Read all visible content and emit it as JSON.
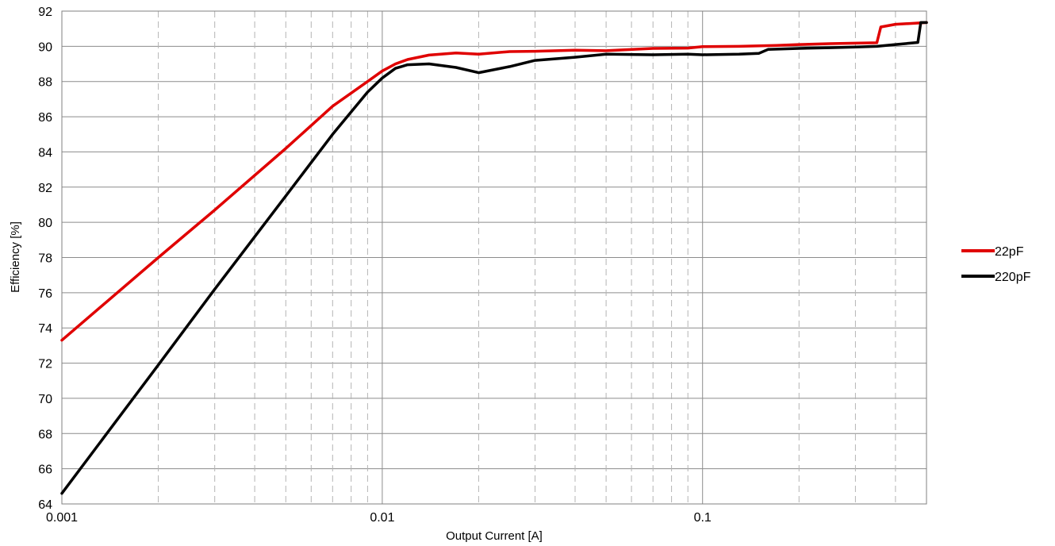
{
  "chart_data": {
    "type": "line",
    "title": "",
    "xlabel": "Output Current [A]",
    "ylabel": "Efficiency [%]",
    "x_scale": "log",
    "xlim": [
      0.001,
      0.5
    ],
    "ylim": [
      64,
      92
    ],
    "y_ticks": [
      64,
      66,
      68,
      70,
      72,
      74,
      76,
      78,
      80,
      82,
      84,
      86,
      88,
      90,
      92
    ],
    "x_tick_labels": [
      {
        "value": 0.001,
        "label": "0.001"
      },
      {
        "value": 0.01,
        "label": "0.01"
      },
      {
        "value": 0.1,
        "label": "0.1"
      }
    ],
    "grid": {
      "horizontal": "solid",
      "vertical_minor": "dashed"
    },
    "legend_position": "right",
    "series": [
      {
        "name": "22pF",
        "color": "#e00000",
        "points": [
          [
            0.001,
            73.3
          ],
          [
            0.002,
            78.0
          ],
          [
            0.003,
            80.7
          ],
          [
            0.005,
            84.2
          ],
          [
            0.007,
            86.6
          ],
          [
            0.009,
            88.0
          ],
          [
            0.01,
            88.6
          ],
          [
            0.011,
            89.0
          ],
          [
            0.012,
            89.25
          ],
          [
            0.014,
            89.5
          ],
          [
            0.017,
            89.62
          ],
          [
            0.02,
            89.55
          ],
          [
            0.025,
            89.7
          ],
          [
            0.03,
            89.72
          ],
          [
            0.04,
            89.78
          ],
          [
            0.05,
            89.75
          ],
          [
            0.07,
            89.88
          ],
          [
            0.09,
            89.9
          ],
          [
            0.1,
            89.98
          ],
          [
            0.13,
            90.0
          ],
          [
            0.17,
            90.05
          ],
          [
            0.2,
            90.1
          ],
          [
            0.25,
            90.15
          ],
          [
            0.3,
            90.18
          ],
          [
            0.35,
            90.2
          ],
          [
            0.36,
            91.1
          ],
          [
            0.4,
            91.25
          ],
          [
            0.45,
            91.3
          ],
          [
            0.5,
            91.35
          ]
        ]
      },
      {
        "name": "220pF",
        "color": "#000000",
        "points": [
          [
            0.001,
            64.6
          ],
          [
            0.002,
            71.9
          ],
          [
            0.003,
            76.2
          ],
          [
            0.005,
            81.5
          ],
          [
            0.007,
            85.0
          ],
          [
            0.009,
            87.4
          ],
          [
            0.01,
            88.2
          ],
          [
            0.011,
            88.75
          ],
          [
            0.012,
            88.95
          ],
          [
            0.014,
            89.0
          ],
          [
            0.017,
            88.8
          ],
          [
            0.02,
            88.5
          ],
          [
            0.025,
            88.85
          ],
          [
            0.03,
            89.2
          ],
          [
            0.04,
            89.38
          ],
          [
            0.05,
            89.55
          ],
          [
            0.07,
            89.52
          ],
          [
            0.09,
            89.55
          ],
          [
            0.1,
            89.52
          ],
          [
            0.13,
            89.55
          ],
          [
            0.15,
            89.6
          ],
          [
            0.16,
            89.82
          ],
          [
            0.2,
            89.88
          ],
          [
            0.25,
            89.92
          ],
          [
            0.3,
            89.96
          ],
          [
            0.35,
            90.0
          ],
          [
            0.4,
            90.1
          ],
          [
            0.47,
            90.22
          ],
          [
            0.48,
            91.35
          ],
          [
            0.5,
            91.35
          ]
        ]
      }
    ]
  }
}
